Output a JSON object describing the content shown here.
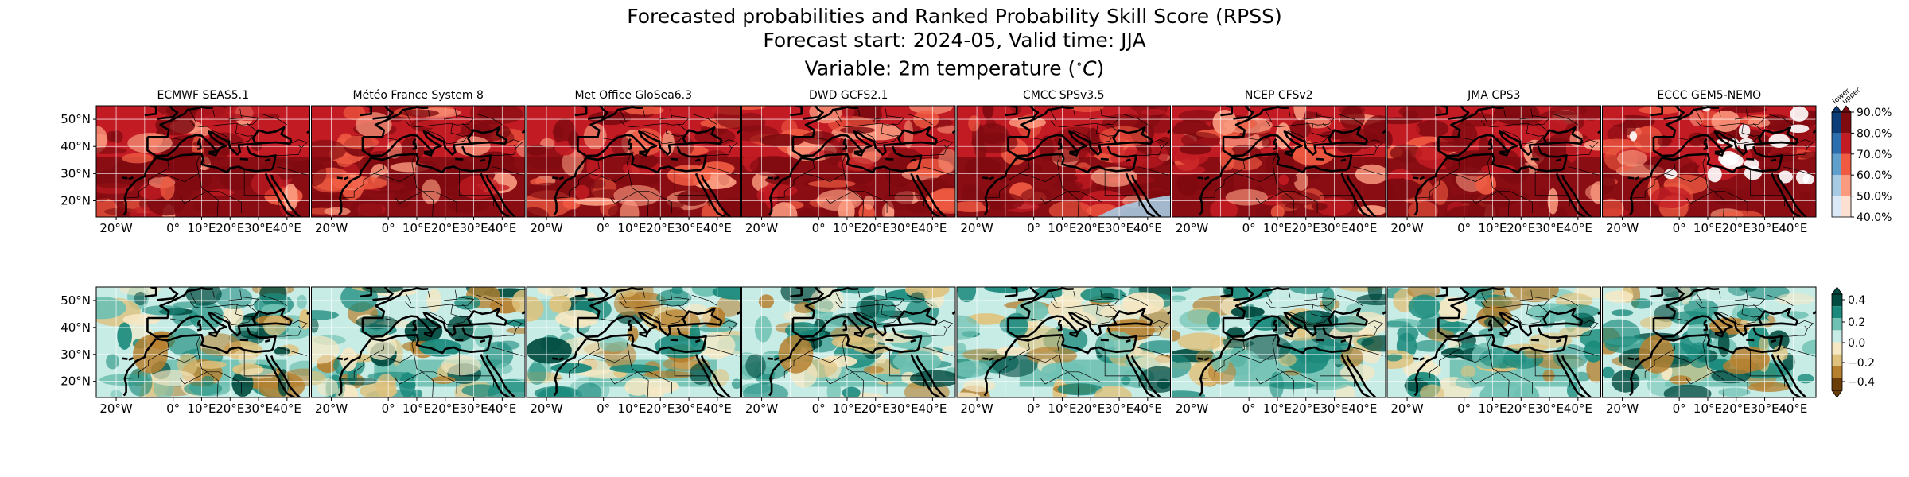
{
  "title": {
    "line1": "Forecasted probabilities and Ranked Probability Skill Score (RPSS)",
    "line2": "Forecast start: 2024-05, Valid time: JJA",
    "line3": "Variable: 2m temperature ($^\\circ C$)"
  },
  "models": [
    "ECMWF SEAS5.1",
    "Météo France System 8",
    "Met Office GloSea6.3",
    "DWD GCFS2.1",
    "CMCC SPSv3.5",
    "NCEP CFSv2",
    "JMA CPS3",
    "ECCC GEM5-NEMO"
  ],
  "lat_ticks": [
    "50°N",
    "40°N",
    "30°N",
    "20°N"
  ],
  "lon_ticks": [
    "20°W",
    "0°",
    "10°E",
    "20°E",
    "30°E",
    "40°E"
  ],
  "map_extent": {
    "lon": [
      -27,
      48
    ],
    "lat": [
      14,
      55
    ]
  },
  "prob_colorbar": {
    "ticks": [
      "90.0%",
      "80.0%",
      "70.0%",
      "60.0%",
      "50.0%",
      "40.0%"
    ],
    "header_lower": "lower",
    "header_upper": "upper",
    "colors_upper": [
      "#fde0d2",
      "#fb9a7f",
      "#ef5a41",
      "#c21b23",
      "#7f0a10"
    ],
    "colors_lower": [
      "#dbe9f6",
      "#a7cbe2",
      "#5fa0cc",
      "#2c6fae",
      "#0b3d78"
    ]
  },
  "rpss_colorbar": {
    "ticks": [
      "0.4",
      "0.2",
      "0.0",
      "−0.2",
      "−0.4"
    ],
    "colors": [
      "#014b40",
      "#1a8a7c",
      "#6fc1b3",
      "#c7ebe5",
      "#f6e8c3",
      "#dfc27d",
      "#b6802f",
      "#6b3d08"
    ]
  },
  "colors": {
    "prob_dark": "#7f0a10",
    "prob_red": "#c21b23",
    "prob_mid": "#ef5a41",
    "prob_light": "#fb9a7f",
    "rpss_green": "#1a8a7c",
    "rpss_light": "#c7ebe5",
    "rpss_brown": "#b6802f",
    "coast": "#000000",
    "grid": "#ffffff"
  }
}
